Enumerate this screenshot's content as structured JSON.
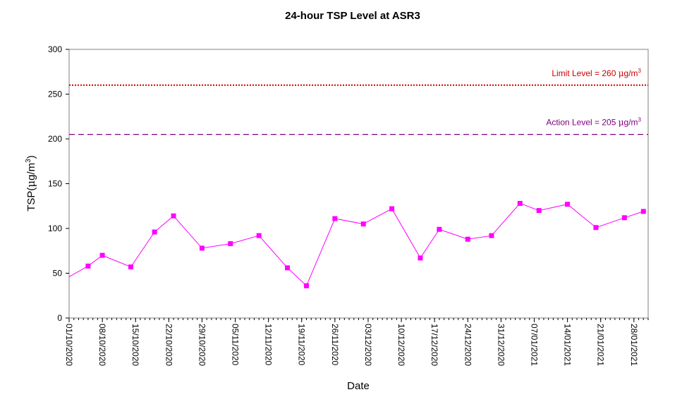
{
  "chart_data": {
    "type": "line",
    "title": "24-hour TSP Level at ASR3",
    "xlabel": "Date",
    "ylabel_main": "TSP(",
    "ylabel_mu": "μ",
    "ylabel_unit": "g/m",
    "ylabel_sup": "3",
    "ylabel_close": ")",
    "ylim": [
      0,
      300
    ],
    "y_ticks": [
      0,
      50,
      100,
      150,
      200,
      250,
      300
    ],
    "x_range": [
      "2020-10-01",
      "2021-01-31"
    ],
    "x_tick_labels": [
      "01/10/2020",
      "08/10/2020",
      "15/10/2020",
      "22/10/2020",
      "29/10/2020",
      "05/11/2020",
      "12/11/2020",
      "19/11/2020",
      "26/11/2020",
      "03/12/2020",
      "10/12/2020",
      "17/12/2020",
      "24/12/2020",
      "31/12/2020",
      "07/01/2021",
      "14/01/2021",
      "21/01/2021",
      "28/01/2021"
    ],
    "x_tick_dates": [
      "2020-10-01",
      "2020-10-08",
      "2020-10-15",
      "2020-10-22",
      "2020-10-29",
      "2020-11-05",
      "2020-11-12",
      "2020-11-19",
      "2020-11-26",
      "2020-12-03",
      "2020-12-10",
      "2020-12-17",
      "2020-12-24",
      "2020-12-31",
      "2021-01-07",
      "2021-01-14",
      "2021-01-21",
      "2021-01-28"
    ],
    "grid": false,
    "legend": "none",
    "series": [
      {
        "color": "#ff00ff",
        "marker": "square",
        "points": [
          {
            "x": "2020-10-01",
            "y": 46
          },
          {
            "x": "2020-10-05",
            "y": 58
          },
          {
            "x": "2020-10-08",
            "y": 70
          },
          {
            "x": "2020-10-14",
            "y": 57
          },
          {
            "x": "2020-10-19",
            "y": 96
          },
          {
            "x": "2020-10-23",
            "y": 114
          },
          {
            "x": "2020-10-29",
            "y": 78
          },
          {
            "x": "2020-11-04",
            "y": 83
          },
          {
            "x": "2020-11-10",
            "y": 92
          },
          {
            "x": "2020-11-16",
            "y": 56
          },
          {
            "x": "2020-11-20",
            "y": 36
          },
          {
            "x": "2020-11-26",
            "y": 111
          },
          {
            "x": "2020-12-02",
            "y": 105
          },
          {
            "x": "2020-12-08",
            "y": 122
          },
          {
            "x": "2020-12-14",
            "y": 67
          },
          {
            "x": "2020-12-18",
            "y": 99
          },
          {
            "x": "2020-12-24",
            "y": 88
          },
          {
            "x": "2020-12-29",
            "y": 92
          },
          {
            "x": "2021-01-04",
            "y": 128
          },
          {
            "x": "2021-01-08",
            "y": 120
          },
          {
            "x": "2021-01-14",
            "y": 127
          },
          {
            "x": "2021-01-20",
            "y": 101
          },
          {
            "x": "2021-01-26",
            "y": 112
          },
          {
            "x": "2021-01-30",
            "y": 119
          }
        ]
      }
    ],
    "reference_lines": [
      {
        "y": 260,
        "label": "Limit Level  = 260 ",
        "mu": "μ",
        "unit": "g/m",
        "sup": "3",
        "color": "#cc0000",
        "style": "dotted"
      },
      {
        "y": 205,
        "label": "Action Level  = 205 ",
        "mu": "μ",
        "unit": "g/m",
        "sup": "3",
        "color": "#800080",
        "style": "dashed"
      }
    ]
  }
}
